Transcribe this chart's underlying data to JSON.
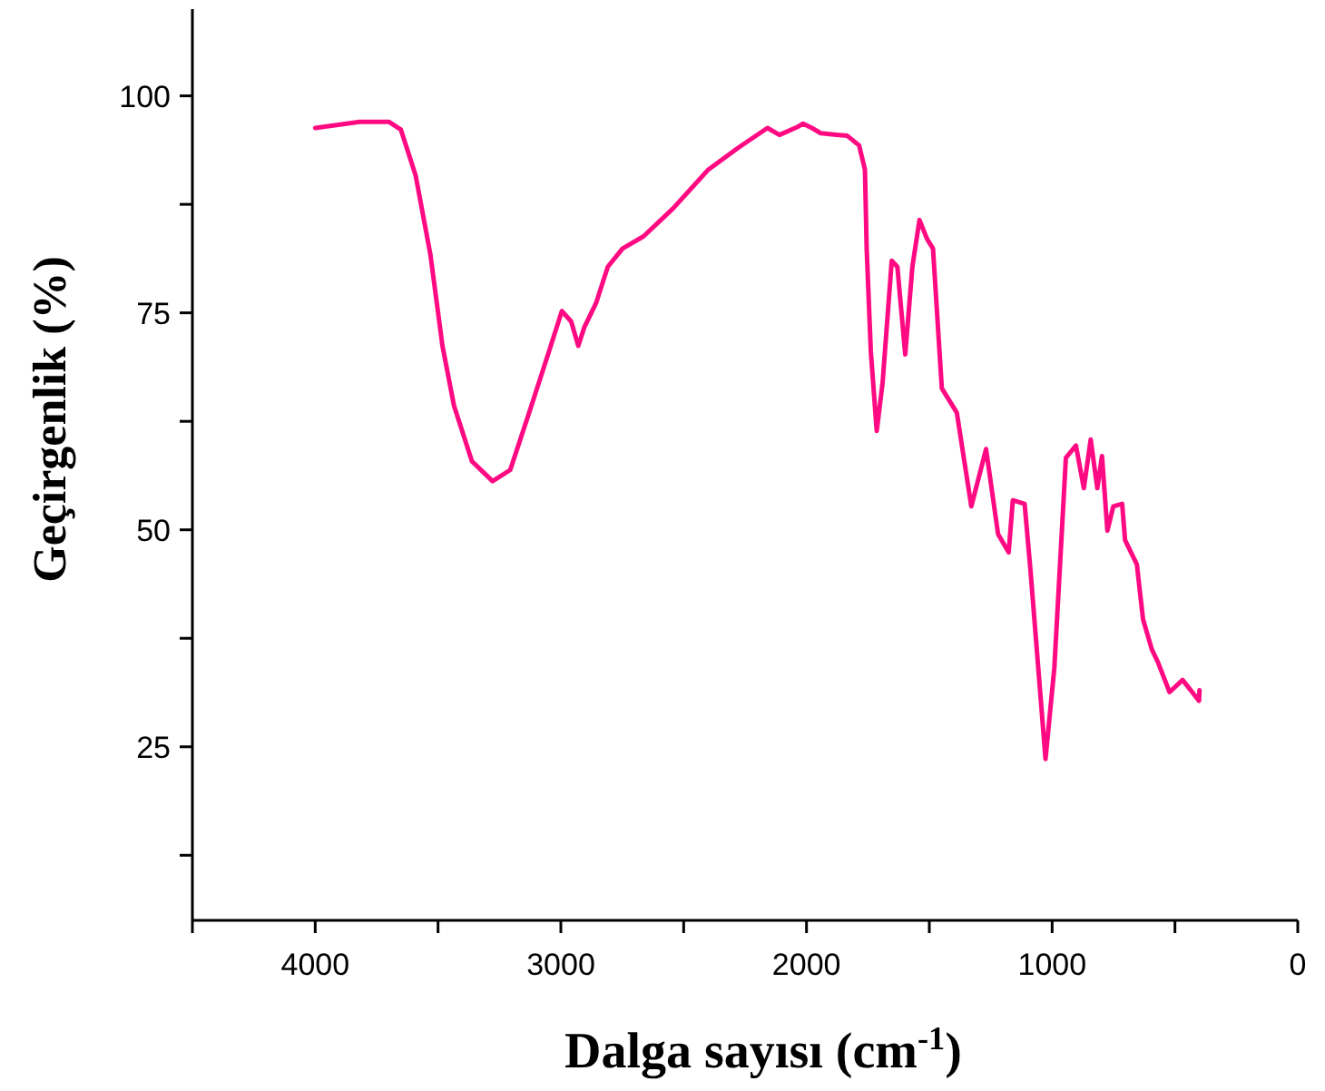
{
  "chart_data": {
    "type": "line",
    "xlabel": "Dalga sayısı (cm$^{-1}$)",
    "ylabel": "Geçirgenlik (%)",
    "xlim": [
      4500,
      0
    ],
    "ylim": [
      5,
      110
    ],
    "xticks": [
      {
        "value": 4500,
        "label": null
      },
      4000,
      {
        "value": 3500,
        "label": null
      },
      3000,
      {
        "value": 2500,
        "label": null
      },
      2000,
      {
        "value": 1500,
        "label": null
      },
      1000,
      {
        "value": 500,
        "label": null
      },
      0
    ],
    "yticks": [
      {
        "value": 12.5,
        "label": null
      },
      25,
      {
        "value": 37.5,
        "label": null
      },
      50,
      {
        "value": 62.5,
        "label": null
      },
      75,
      {
        "value": 87.5,
        "label": null
      },
      100
    ],
    "grid": false,
    "marker": "none",
    "line_style": "solid",
    "series": [
      {
        "color": "#ff0a82",
        "x": [
          4000,
          3819,
          3699,
          3651,
          3591,
          3531,
          3482,
          3435,
          3362,
          3278,
          3206,
          3121,
          3049,
          2996,
          2958,
          2929,
          2905,
          2857,
          2809,
          2749,
          2664,
          2544,
          2400,
          2279,
          2159,
          2110,
          2038,
          2014,
          1978,
          1942,
          1870,
          1834,
          1786,
          1762,
          1755,
          1738,
          1714,
          1690,
          1653,
          1630,
          1598,
          1569,
          1540,
          1509,
          1485,
          1449,
          1388,
          1329,
          1269,
          1220,
          1177,
          1160,
          1112,
          1088,
          1027,
          991,
          944,
          903,
          871,
          843,
          816,
          797,
          775,
          751,
          715,
          703,
          655,
          630,
          594,
          570,
          522,
          469,
          402,
          400
        ],
        "values": [
          96.3,
          97.0,
          97.0,
          96.1,
          90.8,
          81.7,
          71.2,
          64.3,
          57.9,
          55.6,
          56.9,
          64.2,
          70.5,
          75.2,
          74.0,
          71.2,
          73.3,
          76.1,
          80.3,
          82.4,
          83.8,
          87.0,
          91.5,
          94.0,
          96.3,
          95.5,
          96.4,
          96.8,
          96.3,
          95.7,
          95.5,
          95.4,
          94.3,
          91.5,
          82.4,
          70.5,
          61.4,
          67.0,
          81.0,
          80.3,
          70.2,
          80.3,
          85.7,
          83.5,
          82.4,
          66.3,
          63.5,
          52.7,
          59.3,
          49.5,
          47.4,
          53.4,
          53.0,
          45.3,
          23.6,
          34.1,
          58.3,
          59.7,
          54.8,
          60.4,
          54.8,
          58.5,
          49.9,
          52.7,
          53.0,
          48.8,
          46.0,
          39.7,
          36.2,
          34.8,
          31.3,
          32.7,
          30.3,
          31.5
        ]
      }
    ]
  }
}
